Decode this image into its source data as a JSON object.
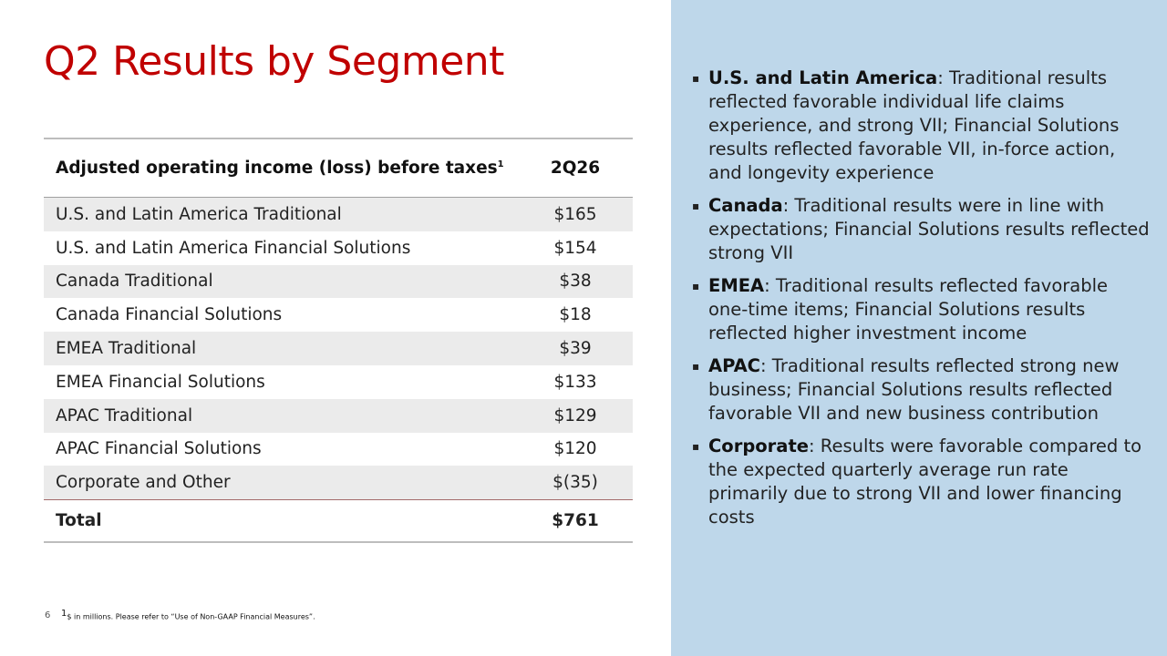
{
  "title": "Q2 Results by Segment",
  "table": {
    "header_label": "Adjusted operating income (loss) before taxes",
    "header_sup": "1",
    "header_period": "2Q26",
    "rows": [
      {
        "label": "U.S. and Latin America Traditional",
        "value": "$165"
      },
      {
        "label": "U.S. and Latin America Financial Solutions",
        "value": "$154"
      },
      {
        "label": "Canada Traditional",
        "value": "$38"
      },
      {
        "label": "Canada Financial Solutions",
        "value": "$18"
      },
      {
        "label": "EMEA Traditional",
        "value": "$39"
      },
      {
        "label": "EMEA Financial Solutions",
        "value": "$133"
      },
      {
        "label": "APAC Traditional",
        "value": "$129"
      },
      {
        "label": "APAC Financial Solutions",
        "value": "$120"
      },
      {
        "label": "Corporate and Other",
        "value": "$(35)"
      }
    ],
    "total": {
      "label": "Total",
      "value": "$761"
    }
  },
  "bullets": [
    {
      "heading": "U.S. and Latin America",
      "text": ": Traditional results reflected favorable individual life claims experience, and strong VII; Financial Solutions results reflected favorable VII, in-force action, and longevity experience"
    },
    {
      "heading": "Canada",
      "text": ": Traditional results were in line with expectations; Financial Solutions results reflected strong VII"
    },
    {
      "heading": "EMEA",
      "text": ": Traditional results reflected favorable one-time items; Financial Solutions results reflected higher investment income"
    },
    {
      "heading": "APAC",
      "text": ": Traditional results reflected strong new business; Financial Solutions results reflected favorable VII and new business contribution"
    },
    {
      "heading": "Corporate",
      "text": ": Results were favorable compared to the expected quarterly average run rate primarily due to strong VII and lower financing costs"
    }
  ],
  "bullet_marker": "▪",
  "page_number": "6",
  "footnote": {
    "sup": "1",
    "text": "$ in millions. Please refer to “Use of Non-GAAP Financial Measures”."
  },
  "colors": {
    "title": "#c00000",
    "panel": "#bed7ea",
    "row_shade": "#ebebeb"
  }
}
